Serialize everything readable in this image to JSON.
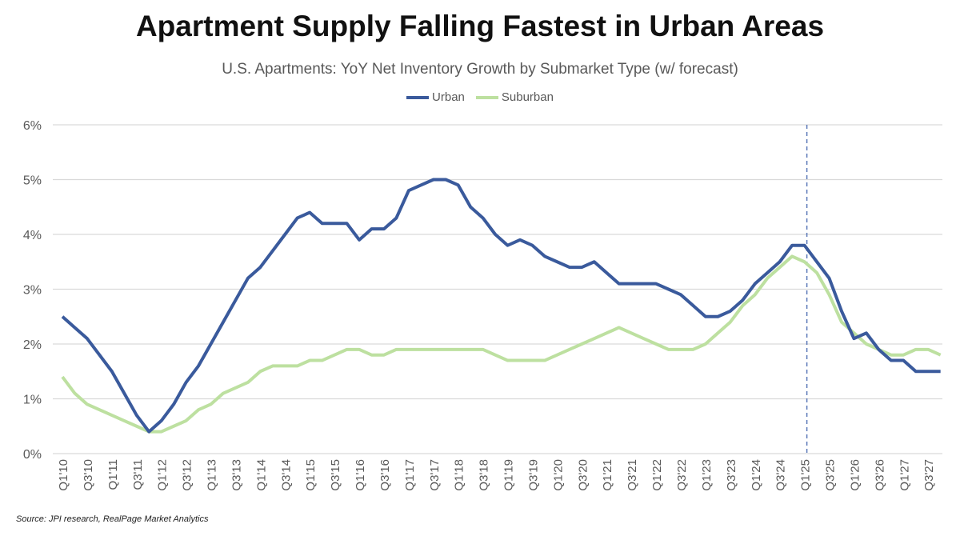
{
  "chart_data": {
    "type": "line",
    "title": "Apartment Supply Falling Fastest in Urban Areas",
    "subtitle": "U.S. Apartments: YoY Net Inventory Growth by Submarket Type (w/ forecast)",
    "source": "Source: JPI research, RealPage Market Analytics",
    "x": [
      "Q1'10",
      "Q2'10",
      "Q3'10",
      "Q4'10",
      "Q1'11",
      "Q2'11",
      "Q3'11",
      "Q4'11",
      "Q1'12",
      "Q2'12",
      "Q3'12",
      "Q4'12",
      "Q1'13",
      "Q2'13",
      "Q3'13",
      "Q4'13",
      "Q1'14",
      "Q2'14",
      "Q3'14",
      "Q4'14",
      "Q1'15",
      "Q2'15",
      "Q3'15",
      "Q4'15",
      "Q1'16",
      "Q2'16",
      "Q3'16",
      "Q4'16",
      "Q1'17",
      "Q2'17",
      "Q3'17",
      "Q4'17",
      "Q1'18",
      "Q2'18",
      "Q3'18",
      "Q4'18",
      "Q1'19",
      "Q2'19",
      "Q3'19",
      "Q4'19",
      "Q1'20",
      "Q2'20",
      "Q3'20",
      "Q4'20",
      "Q1'21",
      "Q2'21",
      "Q3'21",
      "Q4'21",
      "Q1'22",
      "Q2'22",
      "Q3'22",
      "Q4'22",
      "Q1'23",
      "Q2'23",
      "Q3'23",
      "Q4'23",
      "Q1'24",
      "Q2'24",
      "Q3'24",
      "Q4'24",
      "Q1'25",
      "Q2'25",
      "Q3'25",
      "Q4'25",
      "Q1'26",
      "Q2'26",
      "Q3'26",
      "Q4'26",
      "Q1'27",
      "Q2'27",
      "Q3'27",
      "Q4'27"
    ],
    "tick_labels": [
      "Q1'10",
      "Q3'10",
      "Q1'11",
      "Q3'11",
      "Q1'12",
      "Q3'12",
      "Q1'13",
      "Q3'13",
      "Q1'14",
      "Q3'14",
      "Q1'15",
      "Q3'15",
      "Q1'16",
      "Q3'16",
      "Q1'17",
      "Q3'17",
      "Q1'18",
      "Q3'18",
      "Q1'19",
      "Q3'19",
      "Q1'20",
      "Q3'20",
      "Q1'21",
      "Q3'21",
      "Q1'22",
      "Q3'22",
      "Q1'23",
      "Q3'23",
      "Q1'24",
      "Q3'24",
      "Q1'25",
      "Q3'25",
      "Q1'26",
      "Q3'26",
      "Q1'27",
      "Q3'27"
    ],
    "y_ticks": [
      "0%",
      "1%",
      "2%",
      "3%",
      "4%",
      "5%",
      "6%"
    ],
    "ylim": [
      0,
      6
    ],
    "y_unit": "%",
    "grid": "horizontal",
    "legend_position": "top",
    "forecast_start": "Q1'25",
    "series": [
      {
        "name": "Urban",
        "color": "#3A5A9C",
        "values": [
          2.5,
          2.3,
          2.1,
          1.8,
          1.5,
          1.1,
          0.7,
          0.4,
          0.6,
          0.9,
          1.3,
          1.6,
          2.0,
          2.4,
          2.8,
          3.2,
          3.4,
          3.7,
          4.0,
          4.3,
          4.4,
          4.2,
          4.2,
          4.2,
          3.9,
          4.1,
          4.1,
          4.3,
          4.8,
          4.9,
          5.0,
          5.0,
          4.9,
          4.5,
          4.3,
          4.0,
          3.8,
          3.9,
          3.8,
          3.6,
          3.5,
          3.4,
          3.4,
          3.5,
          3.3,
          3.1,
          3.1,
          3.1,
          3.1,
          3.0,
          2.9,
          2.7,
          2.5,
          2.5,
          2.6,
          2.8,
          3.1,
          3.3,
          3.5,
          3.8,
          3.8,
          3.5,
          3.2,
          2.6,
          2.1,
          2.2,
          1.9,
          1.7,
          1.7,
          1.5,
          1.5,
          1.5
        ]
      },
      {
        "name": "Suburban",
        "color": "#BDE0A0",
        "values": [
          1.4,
          1.1,
          0.9,
          0.8,
          0.7,
          0.6,
          0.5,
          0.4,
          0.4,
          0.5,
          0.6,
          0.8,
          0.9,
          1.1,
          1.2,
          1.3,
          1.5,
          1.6,
          1.6,
          1.6,
          1.7,
          1.7,
          1.8,
          1.9,
          1.9,
          1.8,
          1.8,
          1.9,
          1.9,
          1.9,
          1.9,
          1.9,
          1.9,
          1.9,
          1.9,
          1.8,
          1.7,
          1.7,
          1.7,
          1.7,
          1.8,
          1.9,
          2.0,
          2.1,
          2.2,
          2.3,
          2.2,
          2.1,
          2.0,
          1.9,
          1.9,
          1.9,
          2.0,
          2.2,
          2.4,
          2.7,
          2.9,
          3.2,
          3.4,
          3.6,
          3.5,
          3.3,
          2.9,
          2.4,
          2.2,
          2.0,
          1.9,
          1.8,
          1.8,
          1.9,
          1.9,
          1.8
        ]
      }
    ]
  }
}
